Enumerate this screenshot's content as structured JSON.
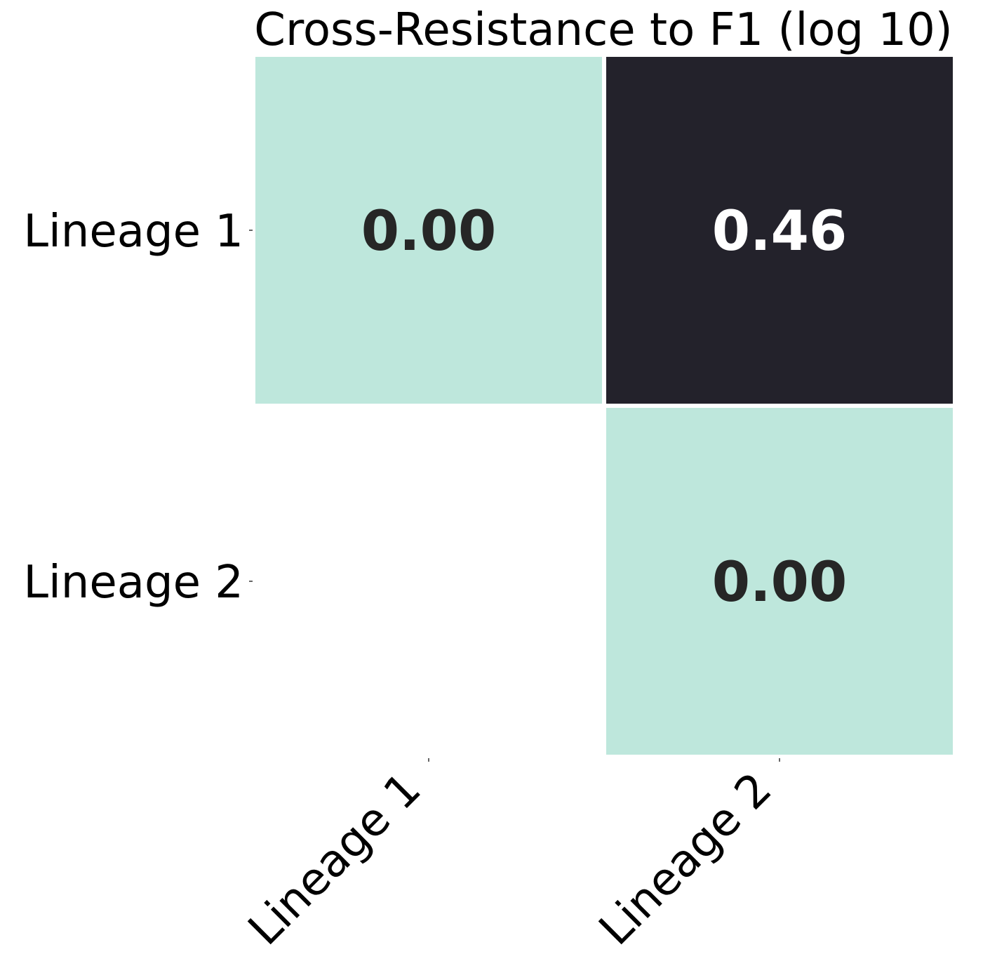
{
  "chart_data": {
    "type": "heatmap",
    "title": "Cross-Resistance to F1 (log 10)",
    "xlabel": "",
    "ylabel": "",
    "rows": [
      "Lineage 1",
      "Lineage 2"
    ],
    "columns": [
      "Lineage 1",
      "Lineage 2"
    ],
    "values": [
      [
        0.0,
        0.46
      ],
      [
        null,
        0.0
      ]
    ],
    "cell_labels": [
      [
        "0.00",
        "0.46"
      ],
      [
        null,
        "0.00"
      ]
    ],
    "masked": "lower-triangle",
    "colorbar": false,
    "colors": {
      "low": "#bee7dc",
      "high": "#23222b",
      "label_on_low": "#262626",
      "label_on_high": "#ffffff"
    }
  }
}
